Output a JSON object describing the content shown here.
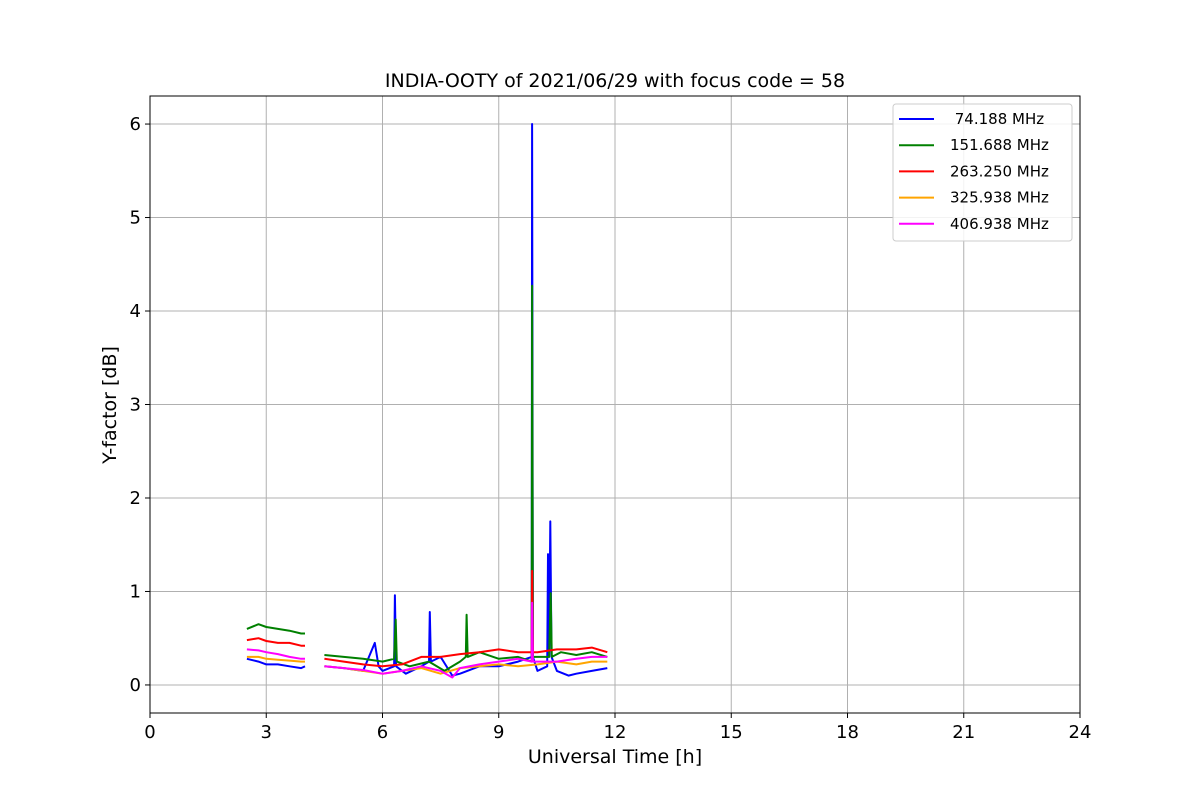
{
  "chart_data": {
    "type": "line",
    "title": "INDIA-OOTY of 2021/06/29 with focus code = 58",
    "xlabel": "Universal Time [h]",
    "ylabel": "Y-factor [dB]",
    "xlim": [
      0,
      24
    ],
    "ylim": [
      -0.3,
      6.3
    ],
    "xticks": [
      0,
      3,
      6,
      9,
      12,
      15,
      18,
      21,
      24
    ],
    "yticks": [
      0,
      1,
      2,
      3,
      4,
      5,
      6
    ],
    "grid": true,
    "legend_position": "top-right",
    "series": [
      {
        "name": " 74.188 MHz",
        "color": "#0000ff",
        "segments": [
          {
            "x": [
              2.5,
              2.8,
              3.0,
              3.3,
              3.6,
              3.9,
              4.0
            ],
            "y": [
              0.28,
              0.25,
              0.22,
              0.22,
              0.2,
              0.18,
              0.2
            ]
          },
          {
            "x": [
              4.5,
              5.0,
              5.5,
              5.8,
              5.9,
              6.0,
              6.3,
              6.32,
              6.35,
              6.6,
              7.0,
              7.2,
              7.22,
              7.25,
              7.5,
              7.8,
              8.0,
              8.5,
              9.0,
              9.5,
              9.85,
              9.86,
              9.88,
              10.0,
              10.25,
              10.27,
              10.3,
              10.33,
              10.36,
              10.5,
              10.8,
              11.0,
              11.4,
              11.8
            ],
            "y": [
              0.2,
              0.18,
              0.15,
              0.45,
              0.2,
              0.15,
              0.2,
              0.96,
              0.2,
              0.12,
              0.2,
              0.25,
              0.78,
              0.25,
              0.3,
              0.1,
              0.12,
              0.2,
              0.2,
              0.25,
              0.3,
              6.0,
              0.3,
              0.15,
              0.2,
              1.4,
              0.3,
              1.75,
              0.3,
              0.15,
              0.1,
              0.12,
              0.15,
              0.18
            ]
          }
        ]
      },
      {
        "name": "151.688 MHz",
        "color": "#008000",
        "segments": [
          {
            "x": [
              2.5,
              2.8,
              3.0,
              3.3,
              3.6,
              3.9,
              4.0
            ],
            "y": [
              0.6,
              0.65,
              0.62,
              0.6,
              0.58,
              0.55,
              0.55
            ]
          },
          {
            "x": [
              4.5,
              5.0,
              5.5,
              6.0,
              6.3,
              6.34,
              6.37,
              6.7,
              7.2,
              7.6,
              8.0,
              8.15,
              8.17,
              8.2,
              8.5,
              9.0,
              9.5,
              9.85,
              9.86,
              9.88,
              10.0,
              10.3,
              10.34,
              10.37,
              10.6,
              11.0,
              11.4,
              11.8
            ],
            "y": [
              0.32,
              0.3,
              0.28,
              0.25,
              0.28,
              0.7,
              0.25,
              0.2,
              0.25,
              0.15,
              0.25,
              0.3,
              0.75,
              0.3,
              0.35,
              0.28,
              0.3,
              0.25,
              4.27,
              0.3,
              0.3,
              0.3,
              0.98,
              0.3,
              0.35,
              0.32,
              0.35,
              0.3
            ]
          }
        ]
      },
      {
        "name": "263.250 MHz",
        "color": "#ff0000",
        "segments": [
          {
            "x": [
              2.5,
              2.8,
              3.0,
              3.3,
              3.6,
              3.9,
              4.0
            ],
            "y": [
              0.48,
              0.5,
              0.47,
              0.45,
              0.45,
              0.42,
              0.42
            ]
          },
          {
            "x": [
              4.5,
              5.0,
              5.5,
              6.0,
              6.5,
              7.0,
              7.5,
              8.0,
              8.5,
              9.0,
              9.5,
              9.85,
              9.86,
              9.88,
              10.0,
              10.5,
              11.0,
              11.4,
              11.8
            ],
            "y": [
              0.28,
              0.25,
              0.22,
              0.2,
              0.22,
              0.3,
              0.3,
              0.33,
              0.35,
              0.38,
              0.35,
              0.35,
              1.22,
              0.35,
              0.35,
              0.38,
              0.38,
              0.4,
              0.35
            ]
          }
        ]
      },
      {
        "name": "325.938 MHz",
        "color": "#ffa500",
        "segments": [
          {
            "x": [
              2.5,
              2.8,
              3.0,
              3.3,
              3.6,
              3.9,
              4.0
            ],
            "y": [
              0.3,
              0.3,
              0.28,
              0.27,
              0.26,
              0.25,
              0.25
            ]
          },
          {
            "x": [
              4.5,
              5.0,
              5.5,
              6.0,
              6.5,
              7.0,
              7.5,
              8.0,
              8.5,
              9.0,
              9.5,
              10.0,
              10.5,
              11.0,
              11.4,
              11.8
            ],
            "y": [
              0.2,
              0.18,
              0.15,
              0.12,
              0.15,
              0.18,
              0.12,
              0.18,
              0.2,
              0.22,
              0.2,
              0.22,
              0.25,
              0.22,
              0.25,
              0.25
            ]
          }
        ]
      },
      {
        "name": "406.938 MHz",
        "color": "#ff00ff",
        "segments": [
          {
            "x": [
              2.5,
              2.8,
              3.0,
              3.3,
              3.6,
              3.9,
              4.0
            ],
            "y": [
              0.38,
              0.37,
              0.35,
              0.33,
              0.3,
              0.28,
              0.28
            ]
          },
          {
            "x": [
              4.5,
              5.0,
              5.5,
              6.0,
              6.5,
              7.0,
              7.5,
              7.8,
              8.0,
              8.5,
              9.0,
              9.5,
              9.85,
              9.86,
              9.88,
              10.0,
              10.5,
              11.0,
              11.4,
              11.8
            ],
            "y": [
              0.2,
              0.18,
              0.16,
              0.12,
              0.15,
              0.2,
              0.15,
              0.08,
              0.18,
              0.22,
              0.25,
              0.28,
              0.25,
              0.88,
              0.25,
              0.25,
              0.25,
              0.28,
              0.3,
              0.3
            ]
          }
        ]
      }
    ]
  }
}
